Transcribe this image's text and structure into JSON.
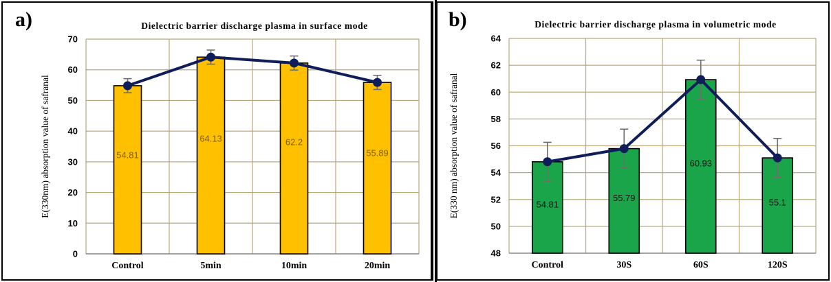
{
  "panels": [
    {
      "letter": "a)",
      "chart_data": {
        "type": "bar",
        "title": "Dielectric barrier discharge plasma in surface mode",
        "xlabel": "",
        "ylabel": "E(330nm) absorption value of safranal",
        "categories": [
          "Control",
          "5min",
          "10min",
          "20min"
        ],
        "values": [
          54.81,
          64.13,
          62.2,
          55.89
        ],
        "data_labels": [
          "54.81",
          "64.13",
          "62.2",
          "55.89"
        ],
        "error": [
          2.3,
          2.3,
          2.3,
          2.3
        ],
        "overlay_line": true,
        "ylim": [
          0,
          70
        ],
        "yticks": [
          0,
          10,
          20,
          30,
          40,
          50,
          60,
          70
        ],
        "grid": true,
        "colors": {
          "bar": "#FFC000",
          "bar_edge": "#000000",
          "line": "#0F1E5A",
          "grid": "#B8A87C",
          "label": "#7F6000"
        }
      }
    },
    {
      "letter": "b)",
      "chart_data": {
        "type": "bar",
        "title": "Dielectric barrier discharge plasma in volumetric mode",
        "xlabel": "",
        "ylabel": "E(330 nm) absorption value of safranal",
        "categories": [
          "Control",
          "30S",
          "60S",
          "120S"
        ],
        "values": [
          54.81,
          55.79,
          60.93,
          55.1
        ],
        "data_labels": [
          "54.81",
          "55.79",
          "60.93",
          "55.1"
        ],
        "error": [
          1.45,
          1.45,
          1.45,
          1.45
        ],
        "overlay_line": true,
        "ylim": [
          48,
          64
        ],
        "yticks": [
          48,
          50,
          52,
          54,
          56,
          58,
          60,
          62,
          64
        ],
        "grid": true,
        "colors": {
          "bar": "#1AA54B",
          "bar_edge": "#000000",
          "line": "#0F1E5A",
          "grid": "#B8A87C",
          "label": "#111111"
        }
      }
    }
  ]
}
